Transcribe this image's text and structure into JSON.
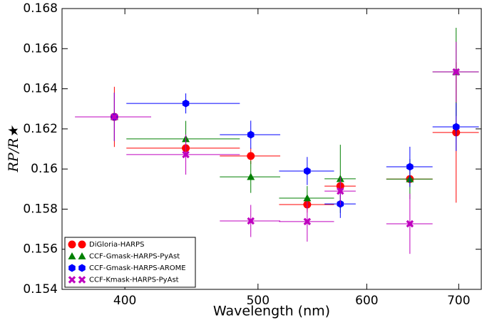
{
  "chart_data": {
    "type": "errorbar",
    "x_label": "Wavelength (nm)",
    "y_label": "RP/R★",
    "xscale": "log",
    "x": [
      393,
      443,
      494,
      543,
      574,
      645,
      697
    ],
    "xerr": [
      25,
      42,
      25,
      25,
      15,
      25,
      27
    ],
    "xlim": [
      360,
      727
    ],
    "xticks": [
      400,
      500,
      600,
      700
    ],
    "ylim": [
      0.154,
      0.168
    ],
    "yticks": [
      0.154,
      0.156,
      0.158,
      0.16,
      0.162,
      0.164,
      0.166,
      0.168
    ],
    "legend": "lower left",
    "series": [
      {
        "name": "DiGloria-HARPS",
        "color": "#ff0000",
        "marker": "circle",
        "values": [
          0.1626,
          0.16104,
          0.16065,
          0.15823,
          0.15915,
          0.1595,
          0.16182
        ],
        "yerr": [
          0.0015,
          0.0004,
          0.0004,
          0.0004,
          0.0003,
          0.0004,
          0.0035
        ]
      },
      {
        "name": "CCF-Gmask-HARPS-PyAst",
        "color": "#008000",
        "marker": "triangle",
        "values": [
          0.1626,
          0.1615,
          0.15961,
          0.15855,
          0.15951,
          0.1595,
          0.16484
        ],
        "yerr": [
          0.0012,
          0.0009,
          0.0008,
          0.0006,
          0.0017,
          0.001,
          0.0022
        ]
      },
      {
        "name": "CCF-Gmask-HARPS-AROME",
        "color": "#0000ff",
        "marker": "hexagon",
        "values": [
          0.1626,
          0.16327,
          0.16171,
          0.1599,
          0.15826,
          0.16011,
          0.1621
        ],
        "yerr": [
          0.0012,
          0.0005,
          0.0007,
          0.0007,
          0.0007,
          0.001,
          0.0012
        ]
      },
      {
        "name": "CCF-Kmask-HARPS-PyAst",
        "color": "#bf00bf",
        "marker": "x",
        "values": [
          0.1626,
          0.16072,
          0.15741,
          0.15738,
          0.1589,
          0.15727,
          0.16484
        ],
        "yerr": [
          0.0012,
          0.001,
          0.0008,
          0.001,
          0.0007,
          0.0015,
          0.0015
        ]
      }
    ]
  }
}
